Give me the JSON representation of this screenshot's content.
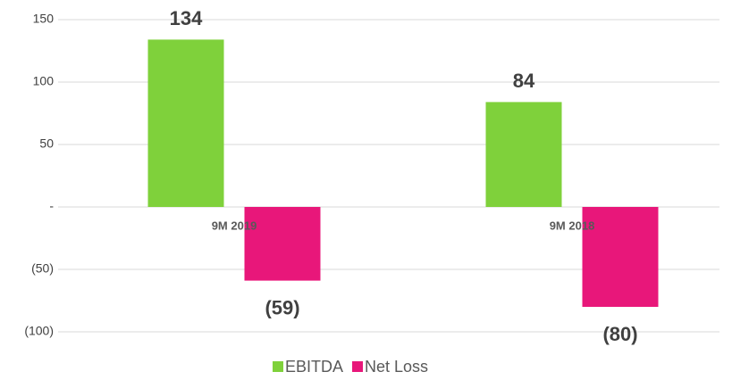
{
  "chart_data": {
    "type": "bar",
    "categories": [
      "9M 2019",
      "9M 2018"
    ],
    "series": [
      {
        "name": "EBITDA",
        "color": "#7fd13b",
        "values": [
          134,
          84
        ],
        "value_labels": [
          "134",
          "84"
        ]
      },
      {
        "name": "Net Loss",
        "color": "#e8177a",
        "values": [
          -59,
          -80
        ],
        "value_labels": [
          "(59)",
          "(80)"
        ]
      }
    ],
    "ylim": [
      -100,
      150
    ],
    "yticks": [
      150,
      100,
      50,
      {
        "value": 0,
        "label": "-"
      },
      {
        "value": -50,
        "label": "(50)"
      },
      {
        "value": -100,
        "label": "(100)"
      }
    ],
    "grid": true,
    "legend": "bottom"
  }
}
